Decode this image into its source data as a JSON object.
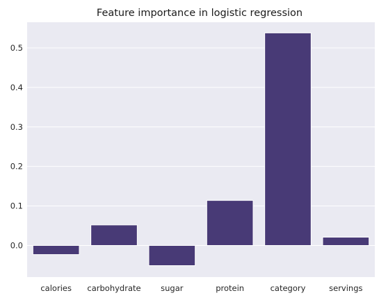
{
  "chart_data": {
    "type": "bar",
    "title": "Feature importance in logistic regression",
    "xlabel": "",
    "ylabel": "",
    "categories": [
      "calories",
      "carbohydrate",
      "sugar",
      "protein",
      "category",
      "servings"
    ],
    "values": [
      -0.023,
      0.052,
      -0.051,
      0.114,
      0.538,
      0.021
    ],
    "ylim": [
      -0.08,
      0.565
    ],
    "yticks": [
      0.0,
      0.1,
      0.2,
      0.3,
      0.4,
      0.5
    ],
    "ytick_labels": [
      "0.0",
      "0.1",
      "0.2",
      "0.3",
      "0.4",
      "0.5"
    ],
    "grid": true,
    "colors": {
      "bar": "#483a76",
      "background": "#eaeaf2",
      "grid": "#ffffff"
    }
  }
}
